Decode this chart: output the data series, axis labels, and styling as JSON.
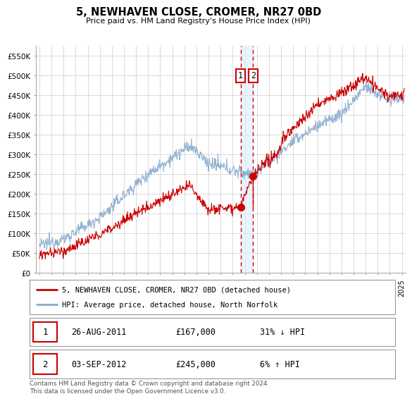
{
  "title": "5, NEWHAVEN CLOSE, CROMER, NR27 0BD",
  "subtitle": "Price paid vs. HM Land Registry's House Price Index (HPI)",
  "ylim": [
    0,
    575000
  ],
  "xlim_start": 1994.7,
  "xlim_end": 2025.3,
  "line1_label": "5, NEWHAVEN CLOSE, CROMER, NR27 0BD (detached house)",
  "line2_label": "HPI: Average price, detached house, North Norfolk",
  "line1_color": "#cc0000",
  "line2_color": "#88aacc",
  "transaction1_year": 2011.65,
  "transaction1_value": 167000,
  "transaction1_date": "26-AUG-2011",
  "transaction1_price": "£167,000",
  "transaction1_hpi": "31% ↓ HPI",
  "transaction2_year": 2012.68,
  "transaction2_value": 245000,
  "transaction2_date": "03-SEP-2012",
  "transaction2_price": "£245,000",
  "transaction2_hpi": "6% ↑ HPI",
  "footer": "Contains HM Land Registry data © Crown copyright and database right 2024.\nThis data is licensed under the Open Government Licence v3.0.",
  "background_color": "#ffffff",
  "grid_color": "#cccccc",
  "highlight_color": "#ddeeff"
}
